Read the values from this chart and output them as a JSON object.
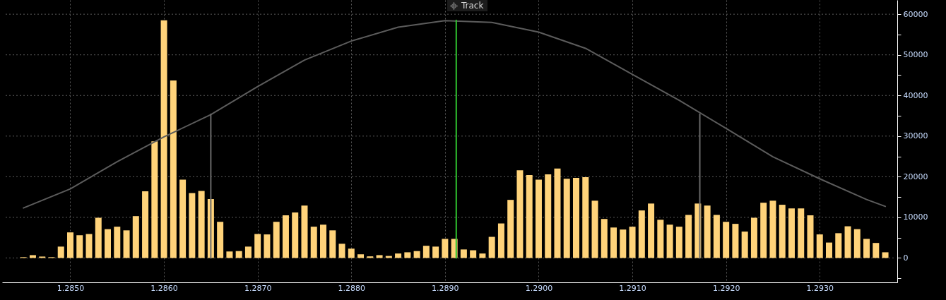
{
  "chart_data": {
    "type": "bar",
    "annotations": [
      "Track"
    ],
    "x": [
      1.2845,
      1.2846,
      1.2847,
      1.2848,
      1.2849,
      1.285,
      1.2851,
      1.2852,
      1.2853,
      1.2854,
      1.2855,
      1.2856,
      1.2857,
      1.2858,
      1.2859,
      1.286,
      1.2861,
      1.2862,
      1.2863,
      1.2864,
      1.2865,
      1.2866,
      1.2867,
      1.2868,
      1.2869,
      1.287,
      1.2871,
      1.2872,
      1.2873,
      1.2874,
      1.2875,
      1.2876,
      1.2877,
      1.2878,
      1.2879,
      1.288,
      1.2881,
      1.2882,
      1.2883,
      1.2884,
      1.2885,
      1.2886,
      1.2887,
      1.2888,
      1.2889,
      1.289,
      1.2891,
      1.2892,
      1.2893,
      1.2894,
      1.2895,
      1.2896,
      1.2897,
      1.2898,
      1.2899,
      1.29,
      1.2901,
      1.2902,
      1.2903,
      1.2904,
      1.2905,
      1.2906,
      1.2907,
      1.2908,
      1.2909,
      1.291,
      1.2911,
      1.2912,
      1.2913,
      1.2914,
      1.2915,
      1.2916,
      1.2917,
      1.2918,
      1.2919,
      1.292,
      1.2921,
      1.2922,
      1.2923,
      1.2924,
      1.2925,
      1.2926,
      1.2927,
      1.2928,
      1.2929,
      1.293,
      1.2931,
      1.2932,
      1.2933,
      1.2934,
      1.2935,
      1.2936,
      1.2937
    ],
    "series": [
      {
        "color": "#ffd37a",
        "values": [
          200,
          700,
          350,
          200,
          2800,
          6300,
          5600,
          5900,
          9900,
          7100,
          7700,
          6800,
          10300,
          16400,
          28700,
          58500,
          43700,
          19300,
          16000,
          16500,
          14500,
          8900,
          1600,
          1700,
          2800,
          5900,
          5800,
          8900,
          10500,
          11200,
          12900,
          7700,
          8200,
          6800,
          3500,
          2300,
          900,
          400,
          700,
          500,
          1100,
          1400,
          1700,
          3000,
          2800,
          4700,
          4700,
          2100,
          1900,
          1100,
          5200,
          8500,
          14300,
          21600,
          20400,
          19300,
          20600,
          22000,
          19500,
          19700,
          19900,
          14100,
          9600,
          7500,
          7000,
          7700,
          11700,
          13400,
          9400,
          8200,
          7700,
          10600,
          13400,
          12900,
          10600,
          8900,
          8400,
          6500,
          9900,
          13600,
          14100,
          13100,
          12200,
          12200,
          10500,
          5800,
          3800,
          6100,
          7800,
          7100,
          4700,
          3700,
          1400
        ]
      },
      {
        "type": "line",
        "color": "#5c5c5c",
        "x": [
          1.2845,
          1.285,
          1.2855,
          1.286,
          1.2865,
          1.287,
          1.2875,
          1.288,
          1.2885,
          1.289,
          1.2895,
          1.29,
          1.2905,
          1.291,
          1.2915,
          1.292,
          1.2925,
          1.293,
          1.2935,
          1.2937
        ],
        "values": [
          12300,
          17000,
          23700,
          29800,
          35300,
          42200,
          48700,
          53400,
          56800,
          58400,
          58000,
          55600,
          51600,
          45200,
          38800,
          31900,
          24900,
          19500,
          14400,
          12700
        ]
      },
      {
        "type": "line",
        "color": "#6a6a6a",
        "x": [
          1.2865,
          1.2865
        ],
        "values": [
          0,
          35400
        ]
      },
      {
        "type": "line",
        "color": "#6a6a6a",
        "x": [
          1.29172,
          1.29172
        ],
        "values": [
          0,
          35400
        ]
      },
      {
        "type": "line",
        "color": "#2fc42f",
        "x": [
          1.28912,
          1.28912
        ],
        "values": [
          58500,
          0
        ]
      }
    ],
    "xlim": [
      1.28431,
      1.29379
    ],
    "xticks": [
      {
        "value": 1.285,
        "label": "1.2850"
      },
      {
        "value": 1.286,
        "label": "1.2860"
      },
      {
        "value": 1.287,
        "label": "1.2870"
      },
      {
        "value": 1.288,
        "label": "1.2880"
      },
      {
        "value": 1.289,
        "label": "1.2890"
      },
      {
        "value": 1.29,
        "label": "1.2900"
      },
      {
        "value": 1.291,
        "label": "1.2910"
      },
      {
        "value": 1.292,
        "label": "1.2920"
      },
      {
        "value": 1.293,
        "label": "1.2930"
      }
    ],
    "ylim": [
      -6000,
      63500
    ],
    "yticks": [
      {
        "value": -5000,
        "label": null
      },
      0,
      {
        "value": 5000,
        "label": null
      },
      10000,
      {
        "value": 15000,
        "label": null
      },
      20000,
      {
        "value": 25000,
        "label": null
      },
      30000,
      {
        "value": 35000,
        "label": null
      },
      40000,
      {
        "value": 45000,
        "label": null
      },
      50000,
      {
        "value": 55000,
        "label": null
      },
      60000
    ],
    "grid": true
  }
}
